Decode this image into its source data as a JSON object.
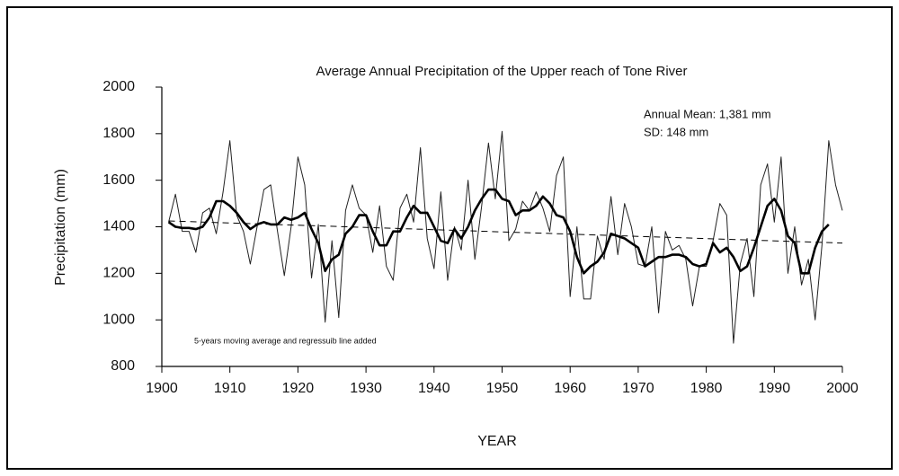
{
  "chart_data": {
    "type": "line",
    "title": "Average Annual Precipitation of the Upper reach of Tone River",
    "x_label": "YEAR",
    "y_label": "Precipitation (mm)",
    "annotations": [
      "Annual Mean: 1,381 mm",
      "SD: 148 mm",
      "5-years moving average and regressuib line added"
    ],
    "x": [
      1901,
      1902,
      1903,
      1904,
      1905,
      1906,
      1907,
      1908,
      1909,
      1910,
      1911,
      1912,
      1913,
      1914,
      1915,
      1916,
      1917,
      1918,
      1919,
      1920,
      1921,
      1922,
      1923,
      1924,
      1925,
      1926,
      1927,
      1928,
      1929,
      1930,
      1931,
      1932,
      1933,
      1934,
      1935,
      1936,
      1937,
      1938,
      1939,
      1940,
      1941,
      1942,
      1943,
      1944,
      1945,
      1946,
      1947,
      1948,
      1949,
      1950,
      1951,
      1952,
      1953,
      1954,
      1955,
      1956,
      1957,
      1958,
      1959,
      1960,
      1961,
      1962,
      1963,
      1964,
      1965,
      1966,
      1967,
      1968,
      1969,
      1970,
      1971,
      1972,
      1973,
      1974,
      1975,
      1976,
      1977,
      1978,
      1979,
      1980,
      1981,
      1982,
      1983,
      1984,
      1985,
      1986,
      1987,
      1988,
      1989,
      1990,
      1991,
      1992,
      1993,
      1994,
      1995,
      1996,
      1997,
      1998,
      1999,
      2000
    ],
    "series": [
      {
        "color": "#222222",
        "width": 1,
        "dashed": false,
        "values": [
          1420,
          1540,
          1380,
          1380,
          1290,
          1460,
          1480,
          1370,
          1550,
          1770,
          1450,
          1380,
          1240,
          1400,
          1560,
          1580,
          1380,
          1190,
          1400,
          1700,
          1580,
          1180,
          1410,
          990,
          1340,
          1010,
          1470,
          1580,
          1480,
          1450,
          1290,
          1490,
          1230,
          1170,
          1480,
          1540,
          1420,
          1740,
          1350,
          1220,
          1550,
          1170,
          1400,
          1300,
          1600,
          1260,
          1490,
          1760,
          1520,
          1810,
          1340,
          1390,
          1510,
          1470,
          1550,
          1480,
          1380,
          1620,
          1700,
          1100,
          1400,
          1090,
          1090,
          1360,
          1260,
          1530,
          1280,
          1500,
          1400,
          1240,
          1230,
          1400,
          1030,
          1380,
          1300,
          1320,
          1260,
          1060,
          1230,
          1230,
          1340,
          1500,
          1450,
          900,
          1240,
          1350,
          1100,
          1580,
          1670,
          1420,
          1700,
          1200,
          1400,
          1150,
          1260,
          1000,
          1320,
          1770,
          1580,
          1470
        ]
      },
      {
        "color": "#000000",
        "width": 2.6,
        "dashed": false,
        "values": [
          1420,
          1400,
          1395,
          1395,
          1390,
          1400,
          1440,
          1510,
          1510,
          1490,
          1460,
          1420,
          1390,
          1410,
          1420,
          1410,
          1410,
          1440,
          1430,
          1440,
          1460,
          1390,
          1330,
          1210,
          1260,
          1280,
          1370,
          1400,
          1450,
          1450,
          1380,
          1320,
          1320,
          1380,
          1380,
          1440,
          1490,
          1460,
          1460,
          1400,
          1340,
          1330,
          1390,
          1350,
          1400,
          1470,
          1520,
          1560,
          1560,
          1520,
          1510,
          1450,
          1470,
          1470,
          1490,
          1530,
          1500,
          1450,
          1440,
          1380,
          1270,
          1200,
          1230,
          1250,
          1290,
          1370,
          1360,
          1350,
          1330,
          1310,
          1230,
          1250,
          1270,
          1270,
          1280,
          1280,
          1270,
          1240,
          1230,
          1240,
          1330,
          1290,
          1310,
          1270,
          1210,
          1230,
          1310,
          1400,
          1490,
          1520,
          1470,
          1360,
          1330,
          1200,
          1200,
          1310,
          1380,
          1410,
          null,
          null
        ]
      },
      {
        "color": "#000000",
        "width": 1,
        "dashed": true,
        "x": [
          1901,
          2000
        ],
        "values": [
          1425,
          1330
        ]
      }
    ],
    "xlim": [
      1900,
      2000
    ],
    "xticks": [
      1900,
      1910,
      1920,
      1930,
      1940,
      1950,
      1960,
      1970,
      1980,
      1990,
      2000
    ],
    "ylim": [
      800,
      2000
    ],
    "yticks": [
      800,
      1000,
      1200,
      1400,
      1600,
      1800,
      2000
    ]
  }
}
